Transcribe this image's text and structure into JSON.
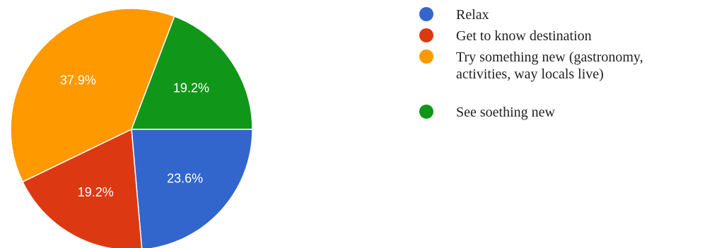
{
  "chart_data": {
    "type": "pie",
    "title": "",
    "slices": [
      {
        "name": "Relax",
        "value": 23.6,
        "label": "23.6%",
        "color": "#3366cc"
      },
      {
        "name": "Get to know destination",
        "value": 19.2,
        "label": "19.2%",
        "color": "#dc3912"
      },
      {
        "name": "Try something new (gastronomy, activities, way locals live)",
        "value": 37.9,
        "label": "37.9%",
        "color": "#ff9900"
      },
      {
        "name": "See soething new",
        "value": 19.2,
        "label": "19.2%",
        "color": "#109618"
      }
    ],
    "legend_position": "right",
    "legend_lines": [
      [
        "Relax"
      ],
      [
        "Get to know destination"
      ],
      [
        "Try something new (gastronomy,",
        "activities, way locals live)"
      ],
      [
        "See soething new"
      ]
    ]
  }
}
